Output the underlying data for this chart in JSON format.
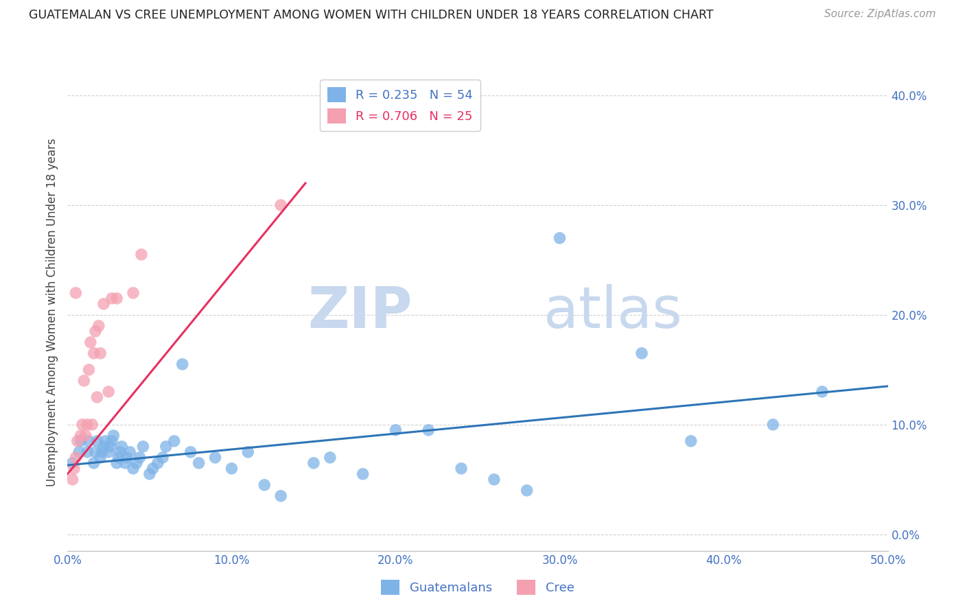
{
  "title": "GUATEMALAN VS CREE UNEMPLOYMENT AMONG WOMEN WITH CHILDREN UNDER 18 YEARS CORRELATION CHART",
  "source": "Source: ZipAtlas.com",
  "ylabel": "Unemployment Among Women with Children Under 18 years",
  "xlim": [
    0.0,
    0.5
  ],
  "ylim": [
    -0.015,
    0.42
  ],
  "guatemalan_R": 0.235,
  "guatemalan_N": 54,
  "cree_R": 0.706,
  "cree_N": 25,
  "guatemalan_color": "#7EB3E8",
  "cree_color": "#F4A0B0",
  "trendline_guatemalan_color": "#2E75B6",
  "trendline_cree_color": "#E83060",
  "axis_color": "#4472C4",
  "grid_color": "#CCCCCC",
  "title_color": "#222222",
  "watermark_color": "#DCE9F8",
  "guatemalan_x": [
    0.003,
    0.007,
    0.008,
    0.012,
    0.013,
    0.016,
    0.017,
    0.018,
    0.02,
    0.021,
    0.022,
    0.023,
    0.025,
    0.026,
    0.027,
    0.028,
    0.03,
    0.031,
    0.032,
    0.033,
    0.035,
    0.036,
    0.038,
    0.04,
    0.042,
    0.044,
    0.046,
    0.05,
    0.052,
    0.055,
    0.058,
    0.06,
    0.065,
    0.07,
    0.075,
    0.08,
    0.09,
    0.1,
    0.11,
    0.12,
    0.13,
    0.15,
    0.16,
    0.18,
    0.2,
    0.22,
    0.24,
    0.26,
    0.28,
    0.3,
    0.35,
    0.38,
    0.43,
    0.46
  ],
  "guatemalan_y": [
    0.065,
    0.075,
    0.085,
    0.075,
    0.085,
    0.065,
    0.075,
    0.085,
    0.07,
    0.075,
    0.08,
    0.085,
    0.075,
    0.08,
    0.085,
    0.09,
    0.065,
    0.07,
    0.075,
    0.08,
    0.065,
    0.07,
    0.075,
    0.06,
    0.065,
    0.07,
    0.08,
    0.055,
    0.06,
    0.065,
    0.07,
    0.08,
    0.085,
    0.155,
    0.075,
    0.065,
    0.07,
    0.06,
    0.075,
    0.045,
    0.035,
    0.065,
    0.07,
    0.055,
    0.095,
    0.095,
    0.06,
    0.05,
    0.04,
    0.27,
    0.165,
    0.085,
    0.1,
    0.13
  ],
  "cree_x": [
    0.003,
    0.004,
    0.005,
    0.005,
    0.006,
    0.008,
    0.009,
    0.01,
    0.011,
    0.012,
    0.013,
    0.014,
    0.015,
    0.016,
    0.017,
    0.018,
    0.019,
    0.02,
    0.022,
    0.025,
    0.027,
    0.03,
    0.04,
    0.045,
    0.13
  ],
  "cree_y": [
    0.05,
    0.06,
    0.07,
    0.22,
    0.085,
    0.09,
    0.1,
    0.14,
    0.09,
    0.1,
    0.15,
    0.175,
    0.1,
    0.165,
    0.185,
    0.125,
    0.19,
    0.165,
    0.21,
    0.13,
    0.215,
    0.215,
    0.22,
    0.255,
    0.3
  ],
  "guatemalan_trend_x": [
    0.0,
    0.5
  ],
  "guatemalan_trend_y": [
    0.063,
    0.135
  ],
  "cree_trend_x": [
    0.0,
    0.145
  ],
  "cree_trend_y": [
    0.055,
    0.32
  ]
}
